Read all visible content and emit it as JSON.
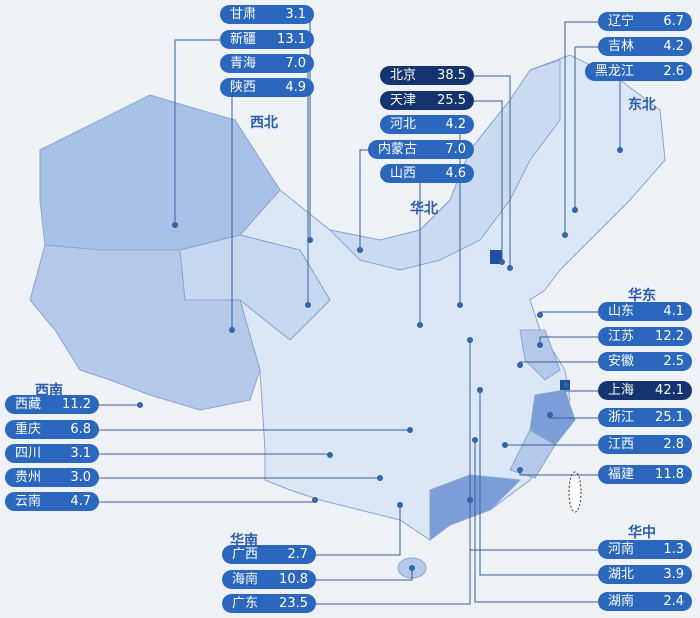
{
  "colors": {
    "pill": "#2b67bd",
    "pill_high": "#14346f",
    "region_label": "#2a5cab",
    "province_light": "#dbe7f6",
    "province_mid": "#b4c9ea",
    "province_high": "#7b9ed8",
    "province_top": "#1f4f9f"
  },
  "regions": [
    {
      "label": "西北"
    },
    {
      "label": "华北"
    },
    {
      "label": "东北"
    },
    {
      "label": "华东"
    },
    {
      "label": "华中"
    },
    {
      "label": "西南"
    },
    {
      "label": "华南"
    }
  ],
  "provinces": [
    {
      "name": "甘肃",
      "value": "3.1",
      "region": "西北"
    },
    {
      "name": "新疆",
      "value": "13.1",
      "region": "西北"
    },
    {
      "name": "青海",
      "value": "7.0",
      "region": "西北"
    },
    {
      "name": "陕西",
      "value": "4.9",
      "region": "西北"
    },
    {
      "name": "北京",
      "value": "38.5",
      "region": "华北",
      "highlight": true
    },
    {
      "name": "天津",
      "value": "25.5",
      "region": "华北",
      "highlight": true
    },
    {
      "name": "河北",
      "value": "4.2",
      "region": "华北"
    },
    {
      "name": "内蒙古",
      "value": "7.0",
      "region": "华北"
    },
    {
      "name": "山西",
      "value": "4.6",
      "region": "华北"
    },
    {
      "name": "辽宁",
      "value": "6.7",
      "region": "东北"
    },
    {
      "name": "吉林",
      "value": "4.2",
      "region": "东北"
    },
    {
      "name": "黑龙江",
      "value": "2.6",
      "region": "东北"
    },
    {
      "name": "山东",
      "value": "4.1",
      "region": "华东"
    },
    {
      "name": "江苏",
      "value": "12.2",
      "region": "华东"
    },
    {
      "name": "安徽",
      "value": "2.5",
      "region": "华东"
    },
    {
      "name": "上海",
      "value": "42.1",
      "region": "华东",
      "highlight": true
    },
    {
      "name": "浙江",
      "value": "25.1",
      "region": "华东"
    },
    {
      "name": "江西",
      "value": "2.8",
      "region": "华东"
    },
    {
      "name": "福建",
      "value": "11.8",
      "region": "华东"
    },
    {
      "name": "河南",
      "value": "1.3",
      "region": "华中"
    },
    {
      "name": "湖北",
      "value": "3.9",
      "region": "华中"
    },
    {
      "name": "湖南",
      "value": "2.4",
      "region": "华中"
    },
    {
      "name": "西藏",
      "value": "11.2",
      "region": "西南"
    },
    {
      "name": "重庆",
      "value": "6.8",
      "region": "西南"
    },
    {
      "name": "四川",
      "value": "3.1",
      "region": "西南"
    },
    {
      "name": "贵州",
      "value": "3.0",
      "region": "西南"
    },
    {
      "name": "云南",
      "value": "4.7",
      "region": "西南"
    },
    {
      "name": "广西",
      "value": "2.7",
      "region": "华南"
    },
    {
      "name": "海南",
      "value": "10.8",
      "region": "华南"
    },
    {
      "name": "广东",
      "value": "23.5",
      "region": "华南"
    }
  ]
}
